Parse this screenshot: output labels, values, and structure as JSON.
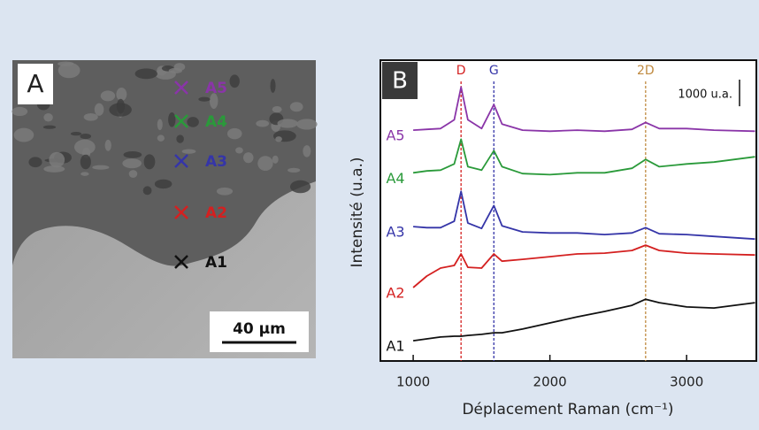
{
  "chart_data": {
    "type": "line",
    "x_label": "Déplacement Raman (cm⁻¹)",
    "y_label": "Intensité (u.a.)",
    "panel_label": "B",
    "x": [
      1000,
      1100,
      1200,
      1300,
      1350,
      1400,
      1500,
      1590,
      1650,
      1800,
      2000,
      2200,
      2400,
      2600,
      2700,
      2800,
      3000,
      3200,
      3500
    ],
    "series": [
      {
        "name": "A1",
        "color": "#111111",
        "values": [
          760,
          830,
          900,
          930,
          930,
          960,
          1000,
          1060,
          1060,
          1200,
          1430,
          1660,
          1860,
          2090,
          2320,
          2190,
          2030,
          1990,
          2190
        ]
      },
      {
        "name": "A2",
        "color": "#d42020",
        "values": [
          2760,
          3190,
          3490,
          3590,
          4020,
          3520,
          3490,
          4020,
          3750,
          3820,
          3920,
          4020,
          4050,
          4150,
          4350,
          4150,
          4050,
          4020,
          3980
        ]
      },
      {
        "name": "A3",
        "color": "#3535a8",
        "values": [
          5050,
          5010,
          5010,
          5250,
          6370,
          5180,
          4980,
          5840,
          5080,
          4850,
          4810,
          4810,
          4750,
          4810,
          5010,
          4780,
          4750,
          4680,
          4580
        ]
      },
      {
        "name": "A4",
        "color": "#2a9a3a",
        "values": [
          7070,
          7140,
          7170,
          7400,
          8330,
          7300,
          7170,
          7900,
          7300,
          7040,
          7000,
          7070,
          7070,
          7240,
          7570,
          7300,
          7400,
          7470,
          7670
        ]
      },
      {
        "name": "A5",
        "color": "#8a35a8",
        "values": [
          8670,
          8700,
          8730,
          9060,
          10290,
          9060,
          8730,
          9630,
          8900,
          8670,
          8630,
          8670,
          8630,
          8700,
          8960,
          8730,
          8730,
          8670,
          8630
        ]
      }
    ],
    "reference_lines": [
      {
        "label": "D",
        "x": 1350,
        "color": "#d42020"
      },
      {
        "label": "G",
        "x": 1590,
        "color": "#3535a8"
      },
      {
        "label": "2D",
        "x": 2700,
        "color": "#c08a40"
      }
    ],
    "scale_bar": {
      "value": 1000,
      "label": "1000 u.a."
    },
    "xlim": [
      760,
      3510
    ],
    "xticks": [
      1000,
      2000,
      3000
    ],
    "ylim": [
      0,
      11300
    ]
  },
  "image_panel": {
    "label": "A",
    "markers": [
      "A5",
      "A4",
      "A3",
      "A2",
      "A1"
    ],
    "scale_bar": "40 µm"
  }
}
